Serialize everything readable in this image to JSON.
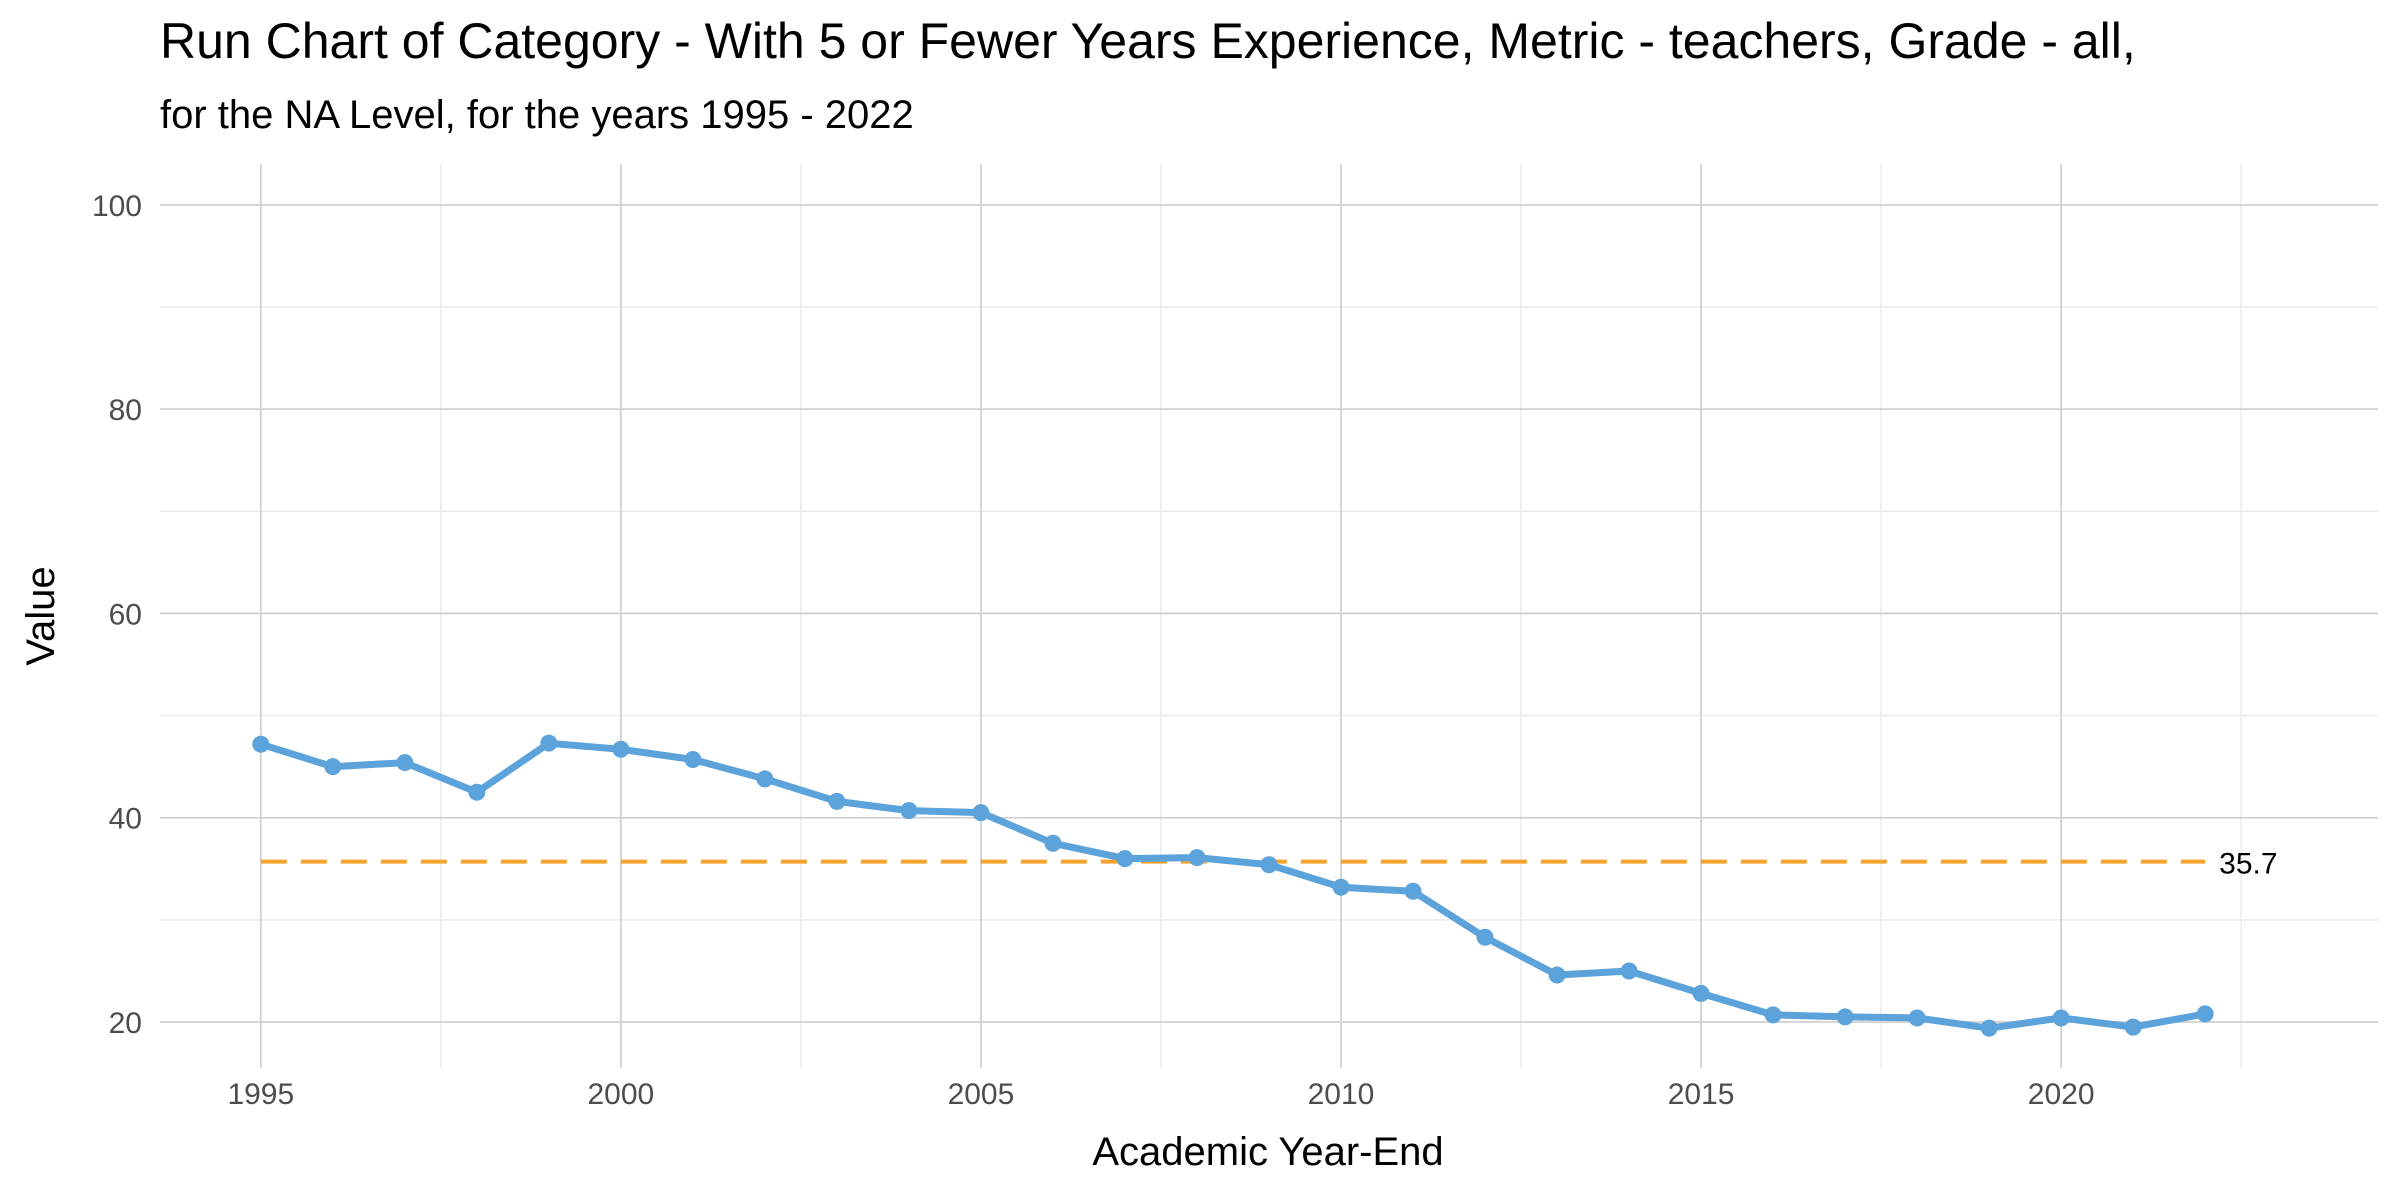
{
  "chart_data": {
    "type": "line",
    "title": "Run Chart of Category -  With 5 or Fewer Years Experience, Metric - teachers, Grade - all,",
    "subtitle": "for the NA Level, for the years 1995 - 2022",
    "xlabel": "Academic Year-End",
    "ylabel": "Value",
    "xlim": [
      1993.6,
      2024.4
    ],
    "ylim": [
      15.5,
      104
    ],
    "x_ticks": [
      "1995",
      "2000",
      "2005",
      "2010",
      "2015",
      "2020"
    ],
    "y_ticks": [
      "20",
      "40",
      "60",
      "80",
      "100"
    ],
    "grid": true,
    "series": [
      {
        "x": [
          1995,
          1996,
          1997,
          1998,
          1999,
          2000,
          2001,
          2002,
          2003,
          2004,
          2005,
          2006,
          2007,
          2008,
          2009,
          2010,
          2011,
          2012,
          2013,
          2014,
          2015,
          2016,
          2017,
          2018,
          2019,
          2020,
          2021,
          2022
        ],
        "values": [
          47.2,
          45.0,
          45.4,
          42.5,
          47.3,
          46.7,
          45.7,
          43.8,
          41.6,
          40.7,
          40.5,
          37.5,
          36.0,
          36.1,
          35.4,
          33.2,
          32.8,
          28.3,
          24.6,
          25.0,
          22.8,
          20.7,
          20.5,
          20.4,
          19.4,
          20.4,
          19.5,
          20.8
        ],
        "color": "#5ca3dc"
      }
    ],
    "reference_line": {
      "value": 35.7,
      "x_range": [
        1995,
        2022
      ],
      "label": "35.7",
      "color": "#f5a32e"
    }
  }
}
